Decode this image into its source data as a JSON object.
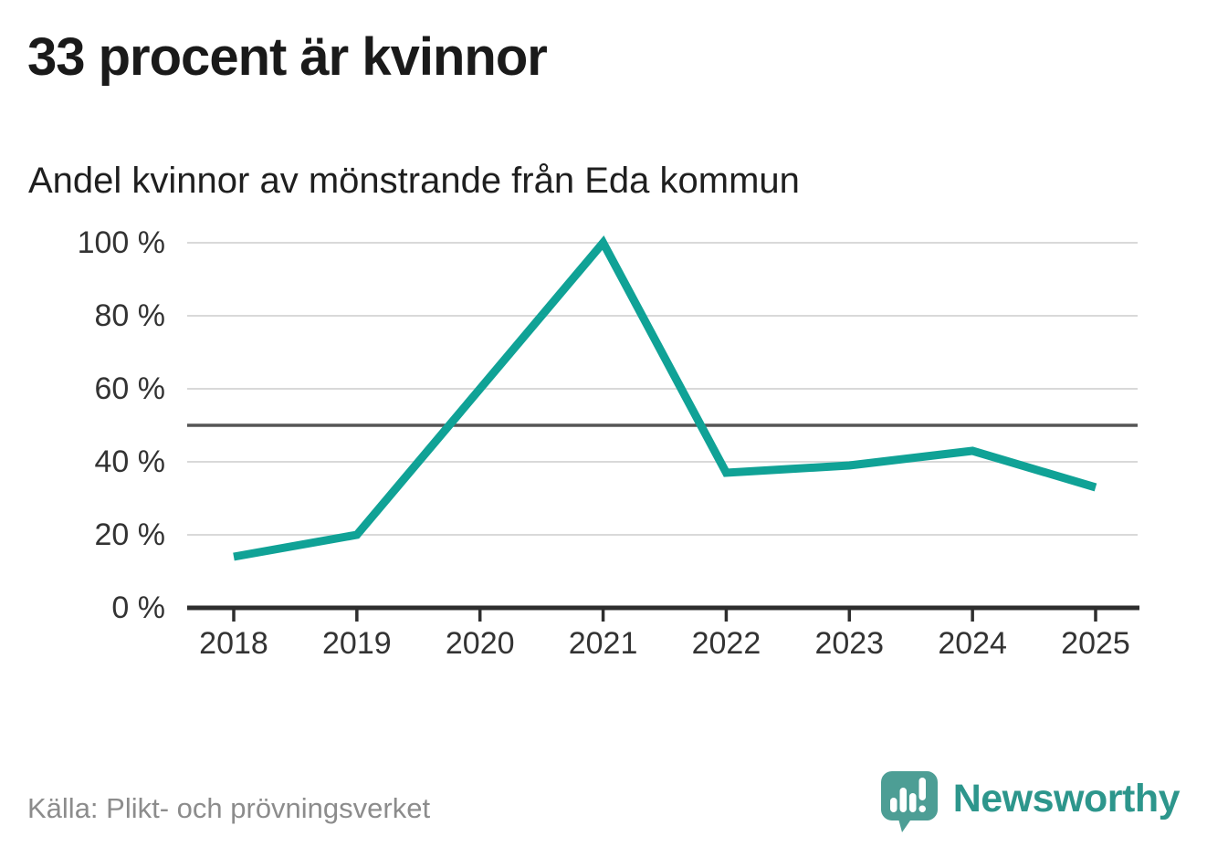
{
  "chart_data": {
    "type": "line",
    "title": "33 procent är kvinnor",
    "subtitle": "Andel kvinnor av mönstrande från Eda kommun",
    "source": "Källa: Plikt- och prövningsverket",
    "x": [
      "2018",
      "2019",
      "2020",
      "2021",
      "2022",
      "2023",
      "2024",
      "2025"
    ],
    "series": [
      {
        "name": "Andel kvinnor av mönstrande",
        "values": [
          14,
          20,
          60,
          100,
          37,
          39,
          43,
          33
        ]
      }
    ],
    "ylim": [
      0,
      100
    ],
    "yticks": [
      0,
      20,
      40,
      60,
      80,
      100
    ],
    "ytick_labels": [
      "0 %",
      "20 %",
      "40 %",
      "60 %",
      "80 %",
      "100 %"
    ],
    "ytick_unit": "%",
    "reference_line": 50,
    "grid": true,
    "legend": "none",
    "line_color": "#10a296"
  },
  "footer": {
    "brand": "Newsworthy"
  },
  "icons": {
    "logo": "newsworthy-speech-bubble-bar-chart-icon"
  },
  "colors": {
    "line": "#10a296",
    "grid": "#d9d9d9",
    "reference_line": "#555555",
    "axis": "#2e2e2e",
    "title_text": "#1a1a1a",
    "subtitle_text": "#1f1f1f",
    "axis_text": "#333333",
    "source_text": "#8c8c8c",
    "brand_teal": "#2d968c",
    "logo_fill": "#4d9e95"
  }
}
